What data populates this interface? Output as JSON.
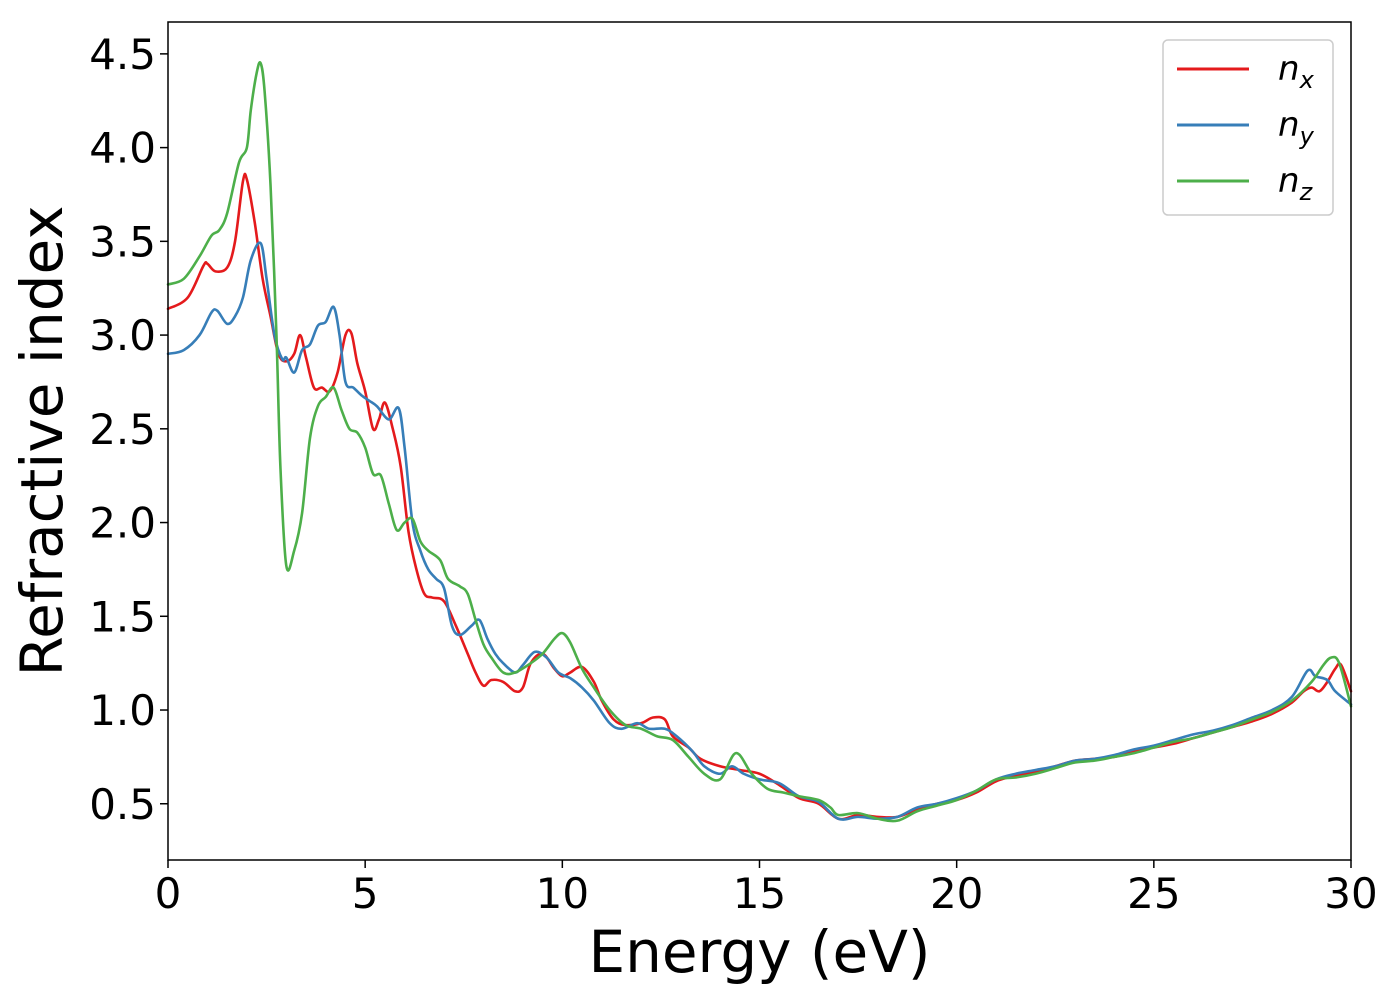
{
  "chart_data": {
    "type": "line",
    "title": "",
    "xlabel": "Energy (eV)",
    "ylabel": "Refractive index",
    "xlim": [
      0,
      30
    ],
    "ylim": [
      0.2,
      4.67
    ],
    "xticks": [
      0,
      5,
      10,
      15,
      20,
      25,
      30
    ],
    "xtick_labels": [
      "0",
      "5",
      "10",
      "15",
      "20",
      "25",
      "30"
    ],
    "yticks": [
      0.5,
      1.0,
      1.5,
      2.0,
      2.5,
      3.0,
      3.5,
      4.0,
      4.5
    ],
    "ytick_labels": [
      "0.5",
      "1.0",
      "1.5",
      "2.0",
      "2.5",
      "3.0",
      "3.5",
      "4.0",
      "4.5"
    ],
    "grid": false,
    "legend_position": "top-right",
    "series": [
      {
        "name": "n",
        "subscript": "x",
        "color": "#e41a1c",
        "points": [
          [
            0,
            3.14
          ],
          [
            0.5,
            3.2
          ],
          [
            0.9,
            3.37
          ],
          [
            1.0,
            3.38
          ],
          [
            1.2,
            3.34
          ],
          [
            1.5,
            3.36
          ],
          [
            1.7,
            3.5
          ],
          [
            1.9,
            3.82
          ],
          [
            2.0,
            3.83
          ],
          [
            2.2,
            3.6
          ],
          [
            2.4,
            3.3
          ],
          [
            2.6,
            3.1
          ],
          [
            2.8,
            2.9
          ],
          [
            3.0,
            2.86
          ],
          [
            3.2,
            2.9
          ],
          [
            3.35,
            3.0
          ],
          [
            3.5,
            2.88
          ],
          [
            3.7,
            2.72
          ],
          [
            3.9,
            2.72
          ],
          [
            4.1,
            2.7
          ],
          [
            4.3,
            2.8
          ],
          [
            4.5,
            3.0
          ],
          [
            4.65,
            3.01
          ],
          [
            4.8,
            2.85
          ],
          [
            5.0,
            2.7
          ],
          [
            5.2,
            2.5
          ],
          [
            5.35,
            2.55
          ],
          [
            5.5,
            2.64
          ],
          [
            5.7,
            2.5
          ],
          [
            5.9,
            2.3
          ],
          [
            6.1,
            1.95
          ],
          [
            6.3,
            1.75
          ],
          [
            6.5,
            1.62
          ],
          [
            6.7,
            1.6
          ],
          [
            7.0,
            1.58
          ],
          [
            7.3,
            1.45
          ],
          [
            7.6,
            1.3
          ],
          [
            7.8,
            1.2
          ],
          [
            8.0,
            1.13
          ],
          [
            8.2,
            1.16
          ],
          [
            8.5,
            1.15
          ],
          [
            8.8,
            1.1
          ],
          [
            9.0,
            1.12
          ],
          [
            9.2,
            1.25
          ],
          [
            9.5,
            1.3
          ],
          [
            9.8,
            1.22
          ],
          [
            10.0,
            1.18
          ],
          [
            10.2,
            1.2
          ],
          [
            10.5,
            1.23
          ],
          [
            10.8,
            1.15
          ],
          [
            11.0,
            1.05
          ],
          [
            11.3,
            0.95
          ],
          [
            11.6,
            0.92
          ],
          [
            12.0,
            0.93
          ],
          [
            12.3,
            0.96
          ],
          [
            12.6,
            0.95
          ],
          [
            12.8,
            0.86
          ],
          [
            13.2,
            0.8
          ],
          [
            13.5,
            0.74
          ],
          [
            14.0,
            0.7
          ],
          [
            14.5,
            0.68
          ],
          [
            15.0,
            0.66
          ],
          [
            15.5,
            0.6
          ],
          [
            16.0,
            0.53
          ],
          [
            16.5,
            0.5
          ],
          [
            17.0,
            0.42
          ],
          [
            17.5,
            0.44
          ],
          [
            18.0,
            0.43
          ],
          [
            18.5,
            0.43
          ],
          [
            19.0,
            0.47
          ],
          [
            19.5,
            0.5
          ],
          [
            20.0,
            0.52
          ],
          [
            20.5,
            0.56
          ],
          [
            21.0,
            0.62
          ],
          [
            21.5,
            0.65
          ],
          [
            22.0,
            0.67
          ],
          [
            22.5,
            0.7
          ],
          [
            23.0,
            0.73
          ],
          [
            23.5,
            0.74
          ],
          [
            24.0,
            0.75
          ],
          [
            24.5,
            0.78
          ],
          [
            25.0,
            0.8
          ],
          [
            25.5,
            0.82
          ],
          [
            26.0,
            0.85
          ],
          [
            26.5,
            0.88
          ],
          [
            27.0,
            0.91
          ],
          [
            27.5,
            0.94
          ],
          [
            28.0,
            0.98
          ],
          [
            28.5,
            1.04
          ],
          [
            28.8,
            1.1
          ],
          [
            29.0,
            1.12
          ],
          [
            29.2,
            1.1
          ],
          [
            29.4,
            1.15
          ],
          [
            29.6,
            1.22
          ],
          [
            29.75,
            1.24
          ],
          [
            30.0,
            1.1
          ]
        ]
      },
      {
        "name": "n",
        "subscript": "y",
        "color": "#377eb8",
        "points": [
          [
            0,
            2.9
          ],
          [
            0.4,
            2.92
          ],
          [
            0.8,
            3.0
          ],
          [
            1.1,
            3.12
          ],
          [
            1.25,
            3.13
          ],
          [
            1.5,
            3.06
          ],
          [
            1.7,
            3.1
          ],
          [
            1.9,
            3.2
          ],
          [
            2.1,
            3.4
          ],
          [
            2.35,
            3.49
          ],
          [
            2.5,
            3.3
          ],
          [
            2.7,
            3.0
          ],
          [
            2.9,
            2.87
          ],
          [
            3.0,
            2.88
          ],
          [
            3.2,
            2.8
          ],
          [
            3.4,
            2.92
          ],
          [
            3.6,
            2.95
          ],
          [
            3.8,
            3.05
          ],
          [
            4.0,
            3.07
          ],
          [
            4.2,
            3.15
          ],
          [
            4.35,
            3.0
          ],
          [
            4.5,
            2.75
          ],
          [
            4.7,
            2.72
          ],
          [
            4.9,
            2.68
          ],
          [
            5.1,
            2.65
          ],
          [
            5.3,
            2.62
          ],
          [
            5.6,
            2.55
          ],
          [
            5.85,
            2.61
          ],
          [
            6.0,
            2.4
          ],
          [
            6.2,
            2.0
          ],
          [
            6.4,
            1.85
          ],
          [
            6.6,
            1.75
          ],
          [
            6.8,
            1.7
          ],
          [
            7.0,
            1.65
          ],
          [
            7.2,
            1.45
          ],
          [
            7.4,
            1.4
          ],
          [
            7.7,
            1.45
          ],
          [
            7.9,
            1.48
          ],
          [
            8.1,
            1.38
          ],
          [
            8.3,
            1.3
          ],
          [
            8.5,
            1.25
          ],
          [
            8.8,
            1.2
          ],
          [
            9.0,
            1.24
          ],
          [
            9.3,
            1.31
          ],
          [
            9.6,
            1.28
          ],
          [
            9.9,
            1.2
          ],
          [
            10.2,
            1.17
          ],
          [
            10.5,
            1.12
          ],
          [
            10.8,
            1.05
          ],
          [
            11.2,
            0.93
          ],
          [
            11.5,
            0.9
          ],
          [
            11.9,
            0.93
          ],
          [
            12.2,
            0.9
          ],
          [
            12.6,
            0.9
          ],
          [
            12.9,
            0.86
          ],
          [
            13.3,
            0.78
          ],
          [
            13.6,
            0.7
          ],
          [
            14.0,
            0.66
          ],
          [
            14.3,
            0.7
          ],
          [
            14.6,
            0.66
          ],
          [
            15.0,
            0.63
          ],
          [
            15.5,
            0.61
          ],
          [
            16.0,
            0.54
          ],
          [
            16.5,
            0.51
          ],
          [
            17.0,
            0.42
          ],
          [
            17.5,
            0.43
          ],
          [
            18.0,
            0.42
          ],
          [
            18.5,
            0.43
          ],
          [
            19.0,
            0.48
          ],
          [
            19.5,
            0.5
          ],
          [
            20.0,
            0.53
          ],
          [
            20.5,
            0.57
          ],
          [
            21.0,
            0.63
          ],
          [
            21.5,
            0.66
          ],
          [
            22.0,
            0.68
          ],
          [
            22.5,
            0.7
          ],
          [
            23.0,
            0.73
          ],
          [
            23.5,
            0.74
          ],
          [
            24.0,
            0.76
          ],
          [
            24.5,
            0.79
          ],
          [
            25.0,
            0.81
          ],
          [
            25.5,
            0.84
          ],
          [
            26.0,
            0.87
          ],
          [
            26.5,
            0.89
          ],
          [
            27.0,
            0.92
          ],
          [
            27.5,
            0.96
          ],
          [
            28.0,
            1.0
          ],
          [
            28.5,
            1.07
          ],
          [
            28.9,
            1.21
          ],
          [
            29.1,
            1.18
          ],
          [
            29.4,
            1.16
          ],
          [
            29.6,
            1.1
          ],
          [
            30.0,
            1.03
          ]
        ]
      },
      {
        "name": "n",
        "subscript": "z",
        "color": "#4daf4a",
        "points": [
          [
            0,
            3.27
          ],
          [
            0.4,
            3.3
          ],
          [
            0.8,
            3.42
          ],
          [
            1.1,
            3.53
          ],
          [
            1.3,
            3.56
          ],
          [
            1.5,
            3.65
          ],
          [
            1.8,
            3.92
          ],
          [
            2.0,
            4.0
          ],
          [
            2.1,
            4.2
          ],
          [
            2.25,
            4.4
          ],
          [
            2.35,
            4.45
          ],
          [
            2.45,
            4.3
          ],
          [
            2.6,
            3.8
          ],
          [
            2.75,
            3.0
          ],
          [
            2.85,
            2.3
          ],
          [
            3.0,
            1.77
          ],
          [
            3.2,
            1.85
          ],
          [
            3.4,
            2.05
          ],
          [
            3.6,
            2.45
          ],
          [
            3.8,
            2.62
          ],
          [
            4.0,
            2.67
          ],
          [
            4.2,
            2.72
          ],
          [
            4.4,
            2.6
          ],
          [
            4.6,
            2.5
          ],
          [
            4.8,
            2.48
          ],
          [
            5.0,
            2.4
          ],
          [
            5.2,
            2.26
          ],
          [
            5.4,
            2.25
          ],
          [
            5.6,
            2.1
          ],
          [
            5.8,
            1.96
          ],
          [
            6.0,
            2.0
          ],
          [
            6.2,
            2.02
          ],
          [
            6.4,
            1.9
          ],
          [
            6.6,
            1.85
          ],
          [
            6.9,
            1.8
          ],
          [
            7.1,
            1.7
          ],
          [
            7.4,
            1.66
          ],
          [
            7.6,
            1.62
          ],
          [
            7.8,
            1.48
          ],
          [
            8.0,
            1.35
          ],
          [
            8.2,
            1.28
          ],
          [
            8.5,
            1.2
          ],
          [
            8.8,
            1.2
          ],
          [
            9.2,
            1.25
          ],
          [
            9.5,
            1.3
          ],
          [
            9.8,
            1.38
          ],
          [
            10.0,
            1.41
          ],
          [
            10.2,
            1.36
          ],
          [
            10.5,
            1.22
          ],
          [
            10.8,
            1.12
          ],
          [
            11.2,
            1.0
          ],
          [
            11.6,
            0.92
          ],
          [
            12.0,
            0.9
          ],
          [
            12.4,
            0.86
          ],
          [
            12.8,
            0.84
          ],
          [
            13.2,
            0.75
          ],
          [
            13.6,
            0.66
          ],
          [
            14.0,
            0.63
          ],
          [
            14.4,
            0.77
          ],
          [
            14.8,
            0.66
          ],
          [
            15.2,
            0.58
          ],
          [
            15.6,
            0.56
          ],
          [
            16.0,
            0.54
          ],
          [
            16.5,
            0.52
          ],
          [
            16.8,
            0.48
          ],
          [
            17.0,
            0.44
          ],
          [
            17.5,
            0.45
          ],
          [
            18.0,
            0.42
          ],
          [
            18.5,
            0.41
          ],
          [
            19.0,
            0.46
          ],
          [
            19.5,
            0.49
          ],
          [
            20.0,
            0.52
          ],
          [
            20.5,
            0.57
          ],
          [
            21.0,
            0.63
          ],
          [
            21.5,
            0.64
          ],
          [
            22.0,
            0.66
          ],
          [
            22.5,
            0.69
          ],
          [
            23.0,
            0.72
          ],
          [
            23.5,
            0.73
          ],
          [
            24.0,
            0.75
          ],
          [
            24.5,
            0.77
          ],
          [
            25.0,
            0.8
          ],
          [
            25.5,
            0.83
          ],
          [
            26.0,
            0.85
          ],
          [
            26.5,
            0.88
          ],
          [
            27.0,
            0.91
          ],
          [
            27.5,
            0.95
          ],
          [
            28.0,
            0.99
          ],
          [
            28.5,
            1.05
          ],
          [
            29.0,
            1.15
          ],
          [
            29.3,
            1.24
          ],
          [
            29.5,
            1.28
          ],
          [
            29.7,
            1.25
          ],
          [
            30.0,
            1.02
          ]
        ]
      }
    ]
  }
}
